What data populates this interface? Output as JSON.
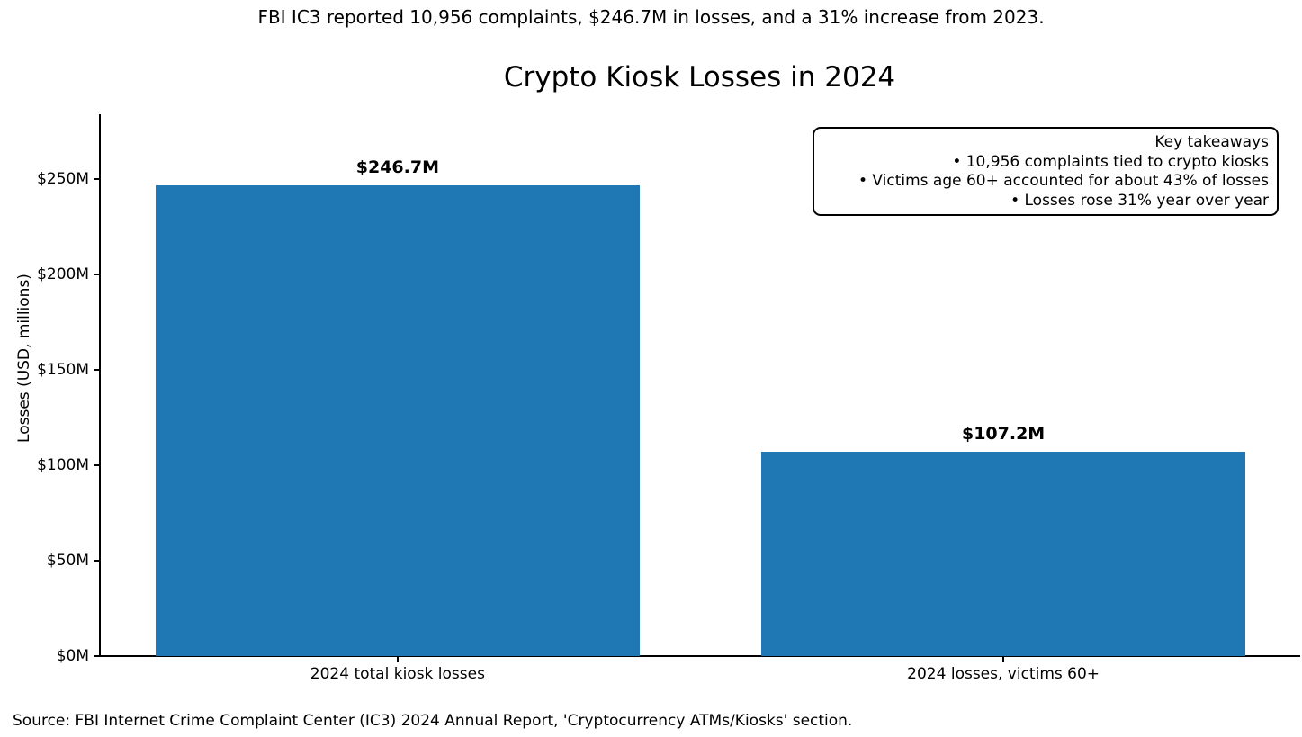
{
  "figure": {
    "suptitle": "FBI IC3 reported 10,956 complaints, $246.7M in losses, and a 31% increase from 2023.",
    "source": "Source: FBI Internet Crime Complaint Center (IC3) 2024 Annual Report, 'Cryptocurrency ATMs/Kiosks' section."
  },
  "annotation_box": {
    "lines": [
      "Key takeaways",
      "• 10,956 complaints tied to crypto kiosks",
      "• Victims age 60+ accounted for about 43% of losses",
      "• Losses rose 31% year over year"
    ]
  },
  "chart_data": {
    "type": "bar",
    "title": "Crypto Kiosk Losses in 2024",
    "categories": [
      "2024 total kiosk losses",
      "2024 losses, victims 60+"
    ],
    "values": [
      246.7,
      107.2
    ],
    "value_labels": [
      "$246.7M",
      "$107.2M"
    ],
    "xlabel": "",
    "ylabel": "Losses (USD, millions)",
    "ylim": [
      0,
      284
    ],
    "yticks": [
      0,
      50,
      100,
      150,
      200,
      250
    ],
    "ytick_labels": [
      "$0M",
      "$50M",
      "$100M",
      "$150M",
      "$200M",
      "$250M"
    ],
    "bar_width_fraction": 0.8,
    "grid": false,
    "legend": null
  },
  "colors": {
    "bar": "#1f77b4",
    "text": "#000000",
    "background": "#ffffff"
  }
}
